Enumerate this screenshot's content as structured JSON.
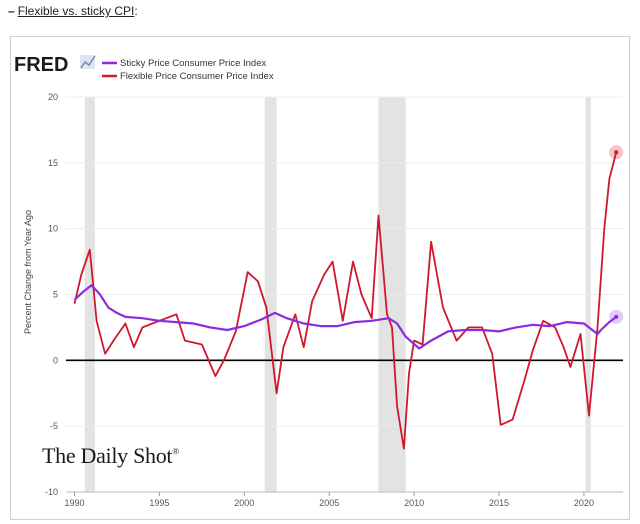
{
  "header": {
    "dash": "–",
    "link_text": "Flexible vs. sticky CPI",
    "suffix": ":"
  },
  "logo": {
    "text": "FRED"
  },
  "watermark": {
    "text": "The Daily Shot",
    "reg": "®"
  },
  "colors": {
    "sticky": "#8a2be2",
    "flexible": "#d0172b",
    "recession": "#e3e3e3",
    "zero_line": "#000000"
  },
  "chart_data": {
    "type": "line",
    "title": "",
    "xlabel": "",
    "ylabel": "Percent Change from Year Ago",
    "xlim": [
      1989.5,
      2022.3
    ],
    "ylim": [
      -10,
      20
    ],
    "x_ticks": [
      1990,
      1995,
      2000,
      2005,
      2010,
      2015,
      2020
    ],
    "x_tick_labels": [
      "1990",
      "1995",
      "2000",
      "2005",
      "2010",
      "2015",
      "2020"
    ],
    "y_ticks": [
      -10,
      -5,
      0,
      5,
      10,
      15,
      20
    ],
    "y_tick_labels": [
      "-10",
      "-5",
      "0",
      "5",
      "10",
      "15",
      "20"
    ],
    "grid": true,
    "legend_position": "top-left",
    "recessions": [
      [
        1990.6,
        1991.2
      ],
      [
        2001.2,
        2001.9
      ],
      [
        2007.9,
        2009.5
      ],
      [
        2020.1,
        2020.4
      ]
    ],
    "series": [
      {
        "name": "Sticky Price Consumer Price Index",
        "color": "#8a2be2",
        "x": [
          1990.0,
          1990.5,
          1991.0,
          1991.5,
          1992.0,
          1992.5,
          1993.0,
          1994.0,
          1995.0,
          1996.0,
          1997.0,
          1998.0,
          1999.0,
          2000.0,
          2001.0,
          2001.8,
          2002.5,
          2003.5,
          2004.5,
          2005.5,
          2006.5,
          2007.5,
          2008.5,
          2009.0,
          2009.5,
          2010.3,
          2011.0,
          2012.0,
          2013.0,
          2014.0,
          2015.0,
          2016.0,
          2017.0,
          2018.0,
          2019.0,
          2020.0,
          2020.8,
          2021.0,
          2021.5,
          2021.9
        ],
        "values": [
          4.6,
          5.2,
          5.7,
          5.0,
          4.0,
          3.6,
          3.3,
          3.2,
          3.0,
          2.9,
          2.8,
          2.5,
          2.3,
          2.6,
          3.1,
          3.6,
          3.2,
          2.8,
          2.6,
          2.6,
          2.9,
          3.0,
          3.2,
          2.8,
          1.8,
          0.9,
          1.5,
          2.2,
          2.3,
          2.3,
          2.2,
          2.5,
          2.7,
          2.6,
          2.9,
          2.8,
          2.0,
          2.3,
          2.9,
          3.3
        ]
      },
      {
        "name": "Flexible Price Consumer Price Index",
        "color": "#d0172b",
        "x": [
          1990.0,
          1990.4,
          1990.9,
          1991.3,
          1991.8,
          1992.3,
          1993.0,
          1993.5,
          1994.0,
          1995.0,
          1996.0,
          1996.5,
          1997.5,
          1998.3,
          1998.8,
          1999.5,
          2000.2,
          2000.8,
          2001.3,
          2001.9,
          2002.3,
          2003.0,
          2003.5,
          2004.0,
          2004.7,
          2005.2,
          2005.8,
          2006.4,
          2006.9,
          2007.5,
          2007.9,
          2008.4,
          2008.7,
          2009.0,
          2009.4,
          2009.7,
          2010.0,
          2010.5,
          2011.0,
          2011.7,
          2012.5,
          2013.2,
          2014.0,
          2014.6,
          2015.1,
          2015.8,
          2016.5,
          2017.0,
          2017.6,
          2018.3,
          2018.8,
          2019.2,
          2019.8,
          2020.3,
          2020.8,
          2021.2,
          2021.5,
          2021.9
        ],
        "values": [
          4.3,
          6.5,
          8.4,
          3.0,
          0.5,
          1.5,
          2.8,
          1.0,
          2.5,
          3.0,
          3.5,
          1.5,
          1.2,
          -1.2,
          0.0,
          2.2,
          6.7,
          6.0,
          4.0,
          -2.5,
          1.0,
          3.5,
          1.0,
          4.5,
          6.5,
          7.5,
          3.0,
          7.5,
          5.0,
          3.2,
          11.0,
          3.5,
          2.5,
          -3.5,
          -6.7,
          -1.0,
          1.5,
          1.2,
          9.0,
          4.0,
          1.5,
          2.5,
          2.5,
          0.5,
          -4.9,
          -4.5,
          -1.5,
          0.8,
          3.0,
          2.5,
          1.0,
          -0.5,
          2.0,
          -4.2,
          2.5,
          10.0,
          13.8,
          15.8
        ]
      }
    ]
  }
}
